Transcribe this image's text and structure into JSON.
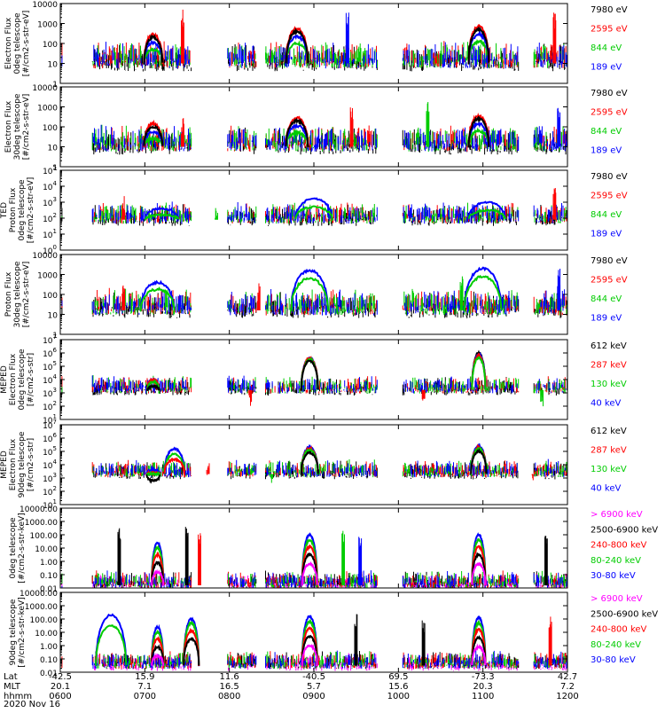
{
  "chart_data": {
    "type": "line",
    "title": "",
    "date": "2020 Nov 16",
    "x_rows": [
      {
        "name": "Lat",
        "values": [
          "-42.5",
          "15.9",
          "11.6",
          "-40.5",
          "69.5",
          "-73.3",
          "42.7"
        ]
      },
      {
        "name": "MLT",
        "values": [
          "20.1",
          "7.1",
          "16.5",
          "5.7",
          "15.6",
          "20.3",
          "7.2"
        ]
      },
      {
        "name": "hhmm",
        "values": [
          "0600",
          "0700",
          "0800",
          "0900",
          "1000",
          "1100",
          "1200"
        ]
      }
    ],
    "x_tick_times_hours": [
      6,
      7,
      8,
      9,
      10,
      11,
      12
    ],
    "xlim_hours": [
      6,
      12
    ],
    "panels": [
      {
        "id": "ted-electron-0",
        "ylabel_lines": [
          "Electron Flux",
          "0deg telescope",
          "[#/cm2-s-str-eV]"
        ],
        "scale": "log-plain",
        "tick_labels": [
          "1",
          "10",
          "100",
          "1000",
          "10000"
        ],
        "ylim_exp": [
          0,
          4
        ],
        "legend": [
          {
            "label": "7980 eV",
            "color": "#000000"
          },
          {
            "label": "2595 eV",
            "color": "#ff0000"
          },
          {
            "label": "844 eV",
            "color": "#00cc00"
          },
          {
            "label": "189 eV",
            "color": "#0000ff"
          }
        ],
        "bumps": [
          {
            "c": 7.1,
            "w": 0.11,
            "peak": 2.3,
            "order": [
              2,
              3,
              1,
              0
            ],
            "off": [
              -0.6,
              -0.25,
              0.15,
              0
            ]
          },
          {
            "c": 8.8,
            "w": 0.13,
            "peak": 2.6,
            "order": [
              2,
              3,
              1,
              0
            ],
            "off": [
              -0.6,
              -0.25,
              0.15,
              0
            ]
          },
          {
            "c": 10.95,
            "w": 0.12,
            "peak": 2.7,
            "order": [
              2,
              3,
              1,
              0
            ],
            "off": [
              -0.6,
              -0.25,
              0.15,
              0
            ]
          }
        ],
        "noise_level": 1.0,
        "spikes": [
          [
            6.6,
            1.7
          ],
          [
            7.45,
            3.8
          ],
          [
            8.45,
            1.9
          ],
          [
            9.4,
            3.6
          ],
          [
            11.85,
            3.7
          ],
          [
            10.45,
            1.7
          ]
        ]
      },
      {
        "id": "ted-electron-30",
        "ylabel_lines": [
          "Electron Flux",
          "30deg telescope",
          "[#/cm2-s-str-eV]"
        ],
        "scale": "log-plain",
        "tick_labels": [
          "1",
          "10",
          "100",
          "1000",
          "10000"
        ],
        "ylim_exp": [
          0,
          4
        ],
        "legend": [
          {
            "label": "7980 eV",
            "color": "#000000"
          },
          {
            "label": "2595 eV",
            "color": "#ff0000"
          },
          {
            "label": "844 eV",
            "color": "#00cc00"
          },
          {
            "label": "189 eV",
            "color": "#0000ff"
          }
        ],
        "bumps": [
          {
            "c": 7.1,
            "w": 0.11,
            "peak": 2.0,
            "order": [
              2,
              3,
              1,
              0
            ],
            "off": [
              -0.6,
              -0.25,
              0.15,
              0
            ]
          },
          {
            "c": 8.8,
            "w": 0.13,
            "peak": 2.3,
            "order": [
              2,
              3,
              1,
              0
            ],
            "off": [
              -0.6,
              -0.25,
              0.15,
              0
            ]
          },
          {
            "c": 10.95,
            "w": 0.12,
            "peak": 2.4,
            "order": [
              2,
              3,
              1,
              0
            ],
            "off": [
              -0.6,
              -0.25,
              0.15,
              0
            ]
          }
        ],
        "noise_level": 1.0,
        "spikes": [
          [
            7.45,
            2.5
          ],
          [
            9.45,
            3.3
          ],
          [
            10.35,
            3.4
          ],
          [
            11.9,
            3.1
          ]
        ]
      },
      {
        "id": "ted-proton-0",
        "ylabel_lines": [
          "TED",
          "Proton Flux",
          "0deg telescope",
          "[#/cm2-s-str-eV]"
        ],
        "scale": "log-exp",
        "tick_labels": [
          "10^0",
          "10^1",
          "10^2",
          "10^3",
          "10^4",
          "10^5"
        ],
        "ylim_exp": [
          0,
          5
        ],
        "legend": [
          {
            "label": "7980 eV",
            "color": "#000000"
          },
          {
            "label": "2595 eV",
            "color": "#ff0000"
          },
          {
            "label": "844 eV",
            "color": "#00cc00"
          },
          {
            "label": "189 eV",
            "color": "#0000ff"
          }
        ],
        "bumps": [
          {
            "c": 7.2,
            "w": 0.2,
            "peak": 2.6,
            "order": [
              3,
              2
            ],
            "off": [
              0,
              -0.4
            ]
          },
          {
            "c": 9.0,
            "w": 0.22,
            "peak": 3.2,
            "order": [
              3,
              2
            ],
            "off": [
              0,
              -0.5
            ]
          },
          {
            "c": 11.05,
            "w": 0.22,
            "peak": 3.0,
            "order": [
              3,
              2
            ],
            "off": [
              0,
              -0.5
            ]
          }
        ],
        "noise_level": 1.9,
        "spikes": [
          [
            6.75,
            3.5
          ],
          [
            11.85,
            3.9
          ],
          [
            7.85,
            2.8
          ]
        ]
      },
      {
        "id": "ted-proton-30",
        "ylabel_lines": [
          "Proton Flux",
          "30deg telescope",
          "[#/cm2-s-str-eV]"
        ],
        "scale": "log-plain",
        "tick_labels": [
          "1",
          "10",
          "100",
          "1000",
          "10000"
        ],
        "ylim_exp": [
          0,
          4
        ],
        "legend": [
          {
            "label": "7980 eV",
            "color": "#000000"
          },
          {
            "label": "2595 eV",
            "color": "#ff0000"
          },
          {
            "label": "844 eV",
            "color": "#00cc00"
          },
          {
            "label": "189 eV",
            "color": "#0000ff"
          }
        ],
        "bumps": [
          {
            "c": 7.15,
            "w": 0.2,
            "peak": 2.6,
            "order": [
              3,
              2
            ],
            "off": [
              0,
              -0.35
            ]
          },
          {
            "c": 8.95,
            "w": 0.22,
            "peak": 3.2,
            "order": [
              3,
              2
            ],
            "off": [
              0,
              -0.4
            ]
          },
          {
            "c": 11.0,
            "w": 0.22,
            "peak": 3.3,
            "order": [
              3,
              2
            ],
            "off": [
              0,
              -0.4
            ]
          }
        ],
        "noise_level": 1.2,
        "spikes": [
          [
            6.75,
            2.8
          ],
          [
            8.35,
            2.6
          ],
          [
            10.75,
            3.0
          ],
          [
            11.9,
            3.4
          ]
        ]
      },
      {
        "id": "meped-electron-0",
        "ylabel_lines": [
          "MEPED",
          "Electron Flux",
          "0deg telescope",
          "[#/cm2-s-str]"
        ],
        "scale": "log-exp",
        "tick_labels": [
          "10^1",
          "10^2",
          "10^3",
          "10^4",
          "10^5",
          "10^6",
          "10^7"
        ],
        "ylim_exp": [
          1,
          7
        ],
        "legend": [
          {
            "label": "612 keV",
            "color": "#000000"
          },
          {
            "label": "287 keV",
            "color": "#ff0000"
          },
          {
            "label": "130 keV",
            "color": "#00cc00"
          },
          {
            "label": "40 keV",
            "color": "#0000ff"
          }
        ],
        "bumps": [
          {
            "c": 7.1,
            "w": 0.07,
            "peak": 4.0,
            "order": [
              3,
              1,
              2,
              0
            ],
            "off": [
              0,
              0,
              -0.15,
              -0.5
            ]
          },
          {
            "c": 8.95,
            "w": 0.1,
            "peak": 5.6,
            "order": [
              3,
              1,
              2,
              0
            ],
            "off": [
              0,
              0,
              -0.1,
              -0.2
            ]
          },
          {
            "c": 10.95,
            "w": 0.08,
            "peak": 5.9,
            "order": [
              0,
              3,
              1,
              2
            ],
            "off": [
              0.1,
              0,
              -0.1,
              -0.25
            ]
          }
        ],
        "noise_level": 2.2,
        "spikes": [
          [
            8.25,
            3.0
          ],
          [
            10.3,
            3.0
          ],
          [
            11.7,
            2.9
          ]
        ]
      },
      {
        "id": "meped-electron-90",
        "ylabel_lines": [
          "MEPED",
          "Electron Flux",
          "90deg telescope",
          "[#/cm2-s-str]"
        ],
        "scale": "log-exp",
        "tick_labels": [
          "10^1",
          "10^2",
          "10^3",
          "10^4",
          "10^5",
          "10^6",
          "10^7"
        ],
        "ylim_exp": [
          1,
          7
        ],
        "legend": [
          {
            "label": "612 keV",
            "color": "#000000"
          },
          {
            "label": "287 keV",
            "color": "#ff0000"
          },
          {
            "label": "130 keV",
            "color": "#00cc00"
          },
          {
            "label": "40 keV",
            "color": "#0000ff"
          }
        ],
        "bumps": [
          {
            "c": 7.1,
            "w": 0.08,
            "peak": 3.6,
            "order": [
              3,
              1,
              2,
              0
            ],
            "off": [
              0,
              -0.2,
              -0.3,
              -0.8
            ]
          },
          {
            "c": 7.35,
            "w": 0.12,
            "peak": 5.2,
            "order": [
              3,
              2,
              1
            ],
            "off": [
              0,
              -0.4,
              -0.8
            ]
          },
          {
            "c": 8.95,
            "w": 0.1,
            "peak": 5.3,
            "order": [
              3,
              1,
              2,
              0
            ],
            "off": [
              0,
              -0.1,
              -0.2,
              -0.4
            ]
          },
          {
            "c": 10.95,
            "w": 0.09,
            "peak": 5.4,
            "order": [
              3,
              1,
              2,
              0
            ],
            "off": [
              0,
              -0.1,
              -0.2,
              -0.4
            ]
          }
        ],
        "noise_level": 2.3,
        "spikes": [
          [
            6.75,
            4.0
          ],
          [
            7.75,
            4.2
          ],
          [
            8.5,
            3.5
          ],
          [
            9.5,
            4.0
          ],
          [
            10.5,
            3.9
          ],
          [
            11.6,
            3.8
          ]
        ]
      },
      {
        "id": "meped-proton-0",
        "ylabel_lines": [
          "0deg telescope",
          "[#/cm2-s-str-keV]"
        ],
        "scale": "log-dec",
        "tick_labels": [
          "0.01",
          "0.10",
          "1.00",
          "10.00",
          "100.00",
          "1000.00",
          "10000.00"
        ],
        "ylim_exp": [
          -2,
          4
        ],
        "legend": [
          {
            "label": "> 6900 keV",
            "color": "#ff00ff"
          },
          {
            "label": "2500-6900 keV",
            "color": "#000000"
          },
          {
            "label": "240-800 keV",
            "color": "#ff0000"
          },
          {
            "label": "80-240 keV",
            "color": "#00cc00"
          },
          {
            "label": "30-80 keV",
            "color": "#0000ff"
          }
        ],
        "bumps": [
          {
            "c": 7.15,
            "w": 0.07,
            "peak": 1.4,
            "order": [
              4,
              3,
              2,
              1,
              0
            ],
            "off": [
              0,
              -0.4,
              -0.9,
              -1.5,
              -2.2
            ]
          },
          {
            "c": 8.95,
            "w": 0.09,
            "peak": 2.0,
            "order": [
              4,
              3,
              2,
              1,
              0
            ],
            "off": [
              0,
              -0.4,
              -0.9,
              -1.5,
              -2.2
            ]
          },
          {
            "c": 10.95,
            "w": 0.08,
            "peak": 2.0,
            "order": [
              4,
              3,
              2,
              1,
              0
            ],
            "off": [
              0,
              -0.4,
              -0.9,
              -1.5,
              -2.2
            ]
          }
        ],
        "noise_level": 0.2,
        "spikes": [
          [
            6.7,
            2.6
          ],
          [
            7.5,
            2.8
          ],
          [
            7.65,
            2.3
          ],
          [
            9.35,
            2.3
          ],
          [
            9.55,
            1.9
          ],
          [
            11.75,
            2.3
          ]
        ]
      },
      {
        "id": "meped-proton-90",
        "ylabel_lines": [
          "90deg telescope",
          "[#/cm2-s-str-keV]"
        ],
        "scale": "log-dec",
        "tick_labels": [
          "0.01",
          "0.10",
          "1.00",
          "10.00",
          "100.00",
          "1000.00",
          "10000.00"
        ],
        "ylim_exp": [
          -2,
          4
        ],
        "legend": [
          {
            "label": "> 6900 keV",
            "color": "#ff00ff"
          },
          {
            "label": "2500-6900 keV",
            "color": "#000000"
          },
          {
            "label": "240-800 keV",
            "color": "#ff0000"
          },
          {
            "label": "80-240 keV",
            "color": "#00cc00"
          },
          {
            "label": "30-80 keV",
            "color": "#0000ff"
          }
        ],
        "bumps": [
          {
            "c": 6.6,
            "w": 0.18,
            "peak": 2.3,
            "order": [
              4,
              3
            ],
            "off": [
              0,
              -0.8
            ]
          },
          {
            "c": 7.15,
            "w": 0.07,
            "peak": 1.4,
            "order": [
              4,
              3,
              2,
              1,
              0
            ],
            "off": [
              0,
              -0.4,
              -0.9,
              -1.5,
              -2.2
            ]
          },
          {
            "c": 7.55,
            "w": 0.09,
            "peak": 2.0,
            "order": [
              4,
              3,
              2,
              1
            ],
            "off": [
              0,
              -0.3,
              -0.9,
              -1.5
            ]
          },
          {
            "c": 8.95,
            "w": 0.09,
            "peak": 2.2,
            "order": [
              4,
              3,
              2,
              1,
              0
            ],
            "off": [
              0,
              -0.4,
              -0.9,
              -1.5,
              -2.2
            ]
          },
          {
            "c": 10.95,
            "w": 0.08,
            "peak": 2.1,
            "order": [
              4,
              3,
              2,
              1,
              0
            ],
            "off": [
              0,
              -0.4,
              -0.9,
              -1.5,
              -2.2
            ]
          }
        ],
        "noise_level": 0.5,
        "spikes": [
          [
            9.5,
            2.4
          ],
          [
            10.3,
            1.9
          ],
          [
            11.8,
            2.3
          ]
        ]
      }
    ]
  }
}
